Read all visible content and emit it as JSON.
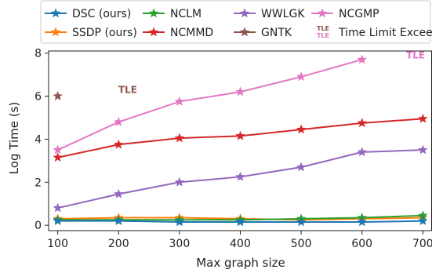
{
  "chart_data": {
    "type": "line",
    "xlabel": "Max graph size",
    "ylabel": "Log Time (s)",
    "x": [
      100,
      200,
      300,
      400,
      500,
      600,
      700
    ],
    "xticks": [
      100,
      200,
      300,
      400,
      500,
      600,
      700
    ],
    "yticks": [
      0,
      2,
      4,
      6,
      8
    ],
    "xlim": [
      85,
      715
    ],
    "ylim": [
      -0.25,
      8.1
    ],
    "grid": false,
    "legend_position": "top (above plot)",
    "series": [
      {
        "name": "DSC (ours)",
        "color": "#1f77b4",
        "values": [
          0.2,
          0.2,
          0.15,
          0.15,
          0.15,
          0.15,
          0.2
        ]
      },
      {
        "name": "SSDP (ours)",
        "color": "#ff7f0e",
        "values": [
          0.3,
          0.35,
          0.35,
          0.3,
          0.25,
          0.3,
          0.35
        ]
      },
      {
        "name": "NCLM",
        "color": "#2ca02c",
        "values": [
          0.25,
          0.25,
          0.25,
          0.25,
          0.3,
          0.35,
          0.45
        ]
      },
      {
        "name": "NCMMD",
        "color": "#d62728",
        "values": [
          3.15,
          3.75,
          4.05,
          4.15,
          4.45,
          4.75,
          4.95
        ]
      },
      {
        "name": "WWLGK",
        "color": "#9467bd",
        "values": [
          0.8,
          1.45,
          2.0,
          2.25,
          2.7,
          3.4,
          3.5
        ]
      },
      {
        "name": "GNTK",
        "color": "#8c564b",
        "values": [
          6.0,
          null,
          null,
          null,
          null,
          null,
          null
        ]
      },
      {
        "name": "NCGMP",
        "color": "#e377c2",
        "values": [
          3.5,
          4.8,
          5.75,
          6.2,
          6.9,
          7.7,
          null
        ]
      }
    ],
    "legend": [
      {
        "label": "DSC (ours)",
        "series": 0,
        "marker": "star"
      },
      {
        "label": "NCLM",
        "series": 2,
        "marker": "star"
      },
      {
        "label": "WWLGK",
        "series": 4,
        "marker": "star"
      },
      {
        "label": "NCGMP",
        "series": 6,
        "marker": "star"
      },
      {
        "label": "SSDP (ours)",
        "series": 1,
        "marker": "star"
      },
      {
        "label": "NCMMD",
        "series": 3,
        "marker": "star"
      },
      {
        "label": "GNTK",
        "series": 5,
        "marker": "star"
      },
      {
        "label": "Time Limit Exceeded",
        "series": null,
        "marker": "tle"
      }
    ],
    "annotations": [
      {
        "text": "TLE",
        "x": 215,
        "y": 6.15,
        "color": "#8c564b",
        "meaning": "GNTK time limit exceeded"
      },
      {
        "text": "TLE",
        "x": 688,
        "y": 7.75,
        "color": "#e377c2",
        "meaning": "NCGMP time limit exceeded"
      }
    ],
    "tle_marker_text": "TLE"
  }
}
